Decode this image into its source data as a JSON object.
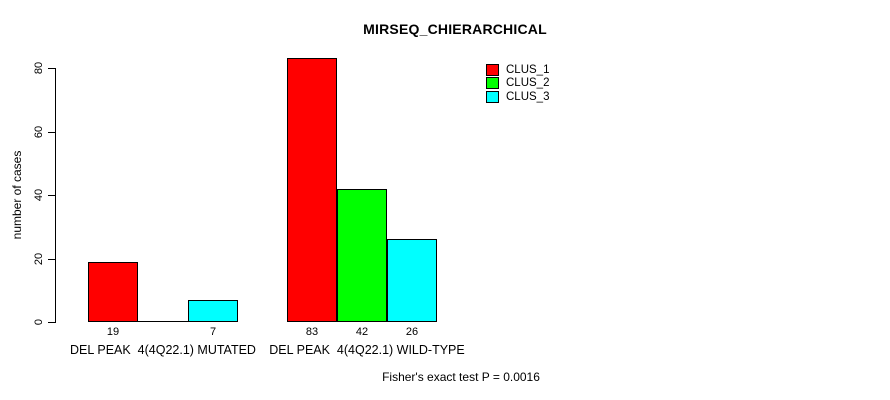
{
  "chart_data": {
    "type": "bar",
    "title": "MIRSEQ_CHIERARCHICAL",
    "ylabel": "number of cases",
    "xlabel": "",
    "categories": [
      "DEL PEAK  4(4Q22.1) MUTATED",
      "DEL PEAK  4(4Q22.1) WILD-TYPE"
    ],
    "series": [
      {
        "name": "CLUS_1",
        "color": "#ff0000",
        "values": [
          19,
          83
        ]
      },
      {
        "name": "CLUS_2",
        "color": "#00ff00",
        "values": [
          0,
          42
        ]
      },
      {
        "name": "CLUS_3",
        "color": "#00ffff",
        "values": [
          7,
          26
        ]
      }
    ],
    "yticks": [
      0,
      20,
      40,
      60,
      80
    ],
    "ylim": [
      0,
      83
    ],
    "grid": false,
    "legend_position": "top-right-inside",
    "bar_value_labels_shown": true,
    "annotation": "Fisher's exact test P = 0.0016",
    "colors": {
      "background": "#ffffff",
      "axis": "#000000",
      "text": "#000000"
    }
  }
}
